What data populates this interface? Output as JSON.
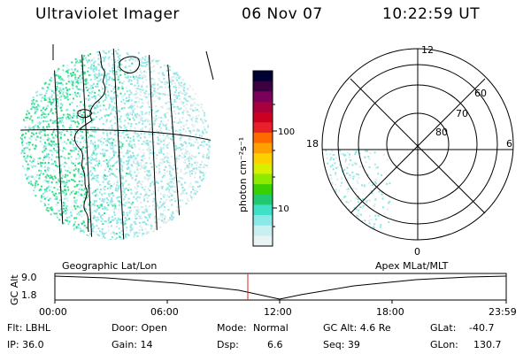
{
  "header": {
    "title": "Ultraviolet Imager",
    "date": "06 Nov 07",
    "time": "10:22:59 UT"
  },
  "geo_map": {
    "label": "Geographic Lat/Lon"
  },
  "colorbar": {
    "unit_label": "photon cm⁻²s⁻¹",
    "ticks": [
      "100",
      "10"
    ],
    "colors": [
      "#000033",
      "#3a0040",
      "#7a005a",
      "#a8003e",
      "#cc0022",
      "#e8202a",
      "#ff6a00",
      "#ffa000",
      "#ffd000",
      "#d8f000",
      "#90ea00",
      "#3ad000",
      "#22c870",
      "#40e0c8",
      "#8ae8e8",
      "#c8f0f0",
      "#e8f4f4"
    ]
  },
  "polar_plot": {
    "label": "Apex MLat/MLT",
    "mlt_labels": [
      "12",
      "6",
      "0",
      "18"
    ],
    "lat_labels": [
      "60",
      "70",
      "80"
    ]
  },
  "alt_plot": {
    "ylabel": "GC Alt",
    "yticks": [
      "9.0",
      "1.8"
    ],
    "xticks": [
      "00:00",
      "06:00",
      "12:00",
      "18:00",
      "23:59"
    ]
  },
  "status": {
    "col1": [
      "Flt: LBHL",
      "IP: 36.0"
    ],
    "col2": [
      "Door: Open",
      "Gain: 14"
    ],
    "col3_label": [
      "Mode:",
      "Dsp:"
    ],
    "col3_value": [
      "Normal",
      "6.6"
    ],
    "col4": [
      "GC Alt: 4.6 Re",
      "Seq: 39"
    ],
    "col5_label": [
      "GLat:",
      "GLon:"
    ],
    "col5_value": [
      "-40.7",
      "130.7"
    ]
  },
  "colors": {
    "noise_cyan": "#8ee6e6",
    "noise_green": "#33dd88",
    "marker_red": "#dd2222"
  }
}
